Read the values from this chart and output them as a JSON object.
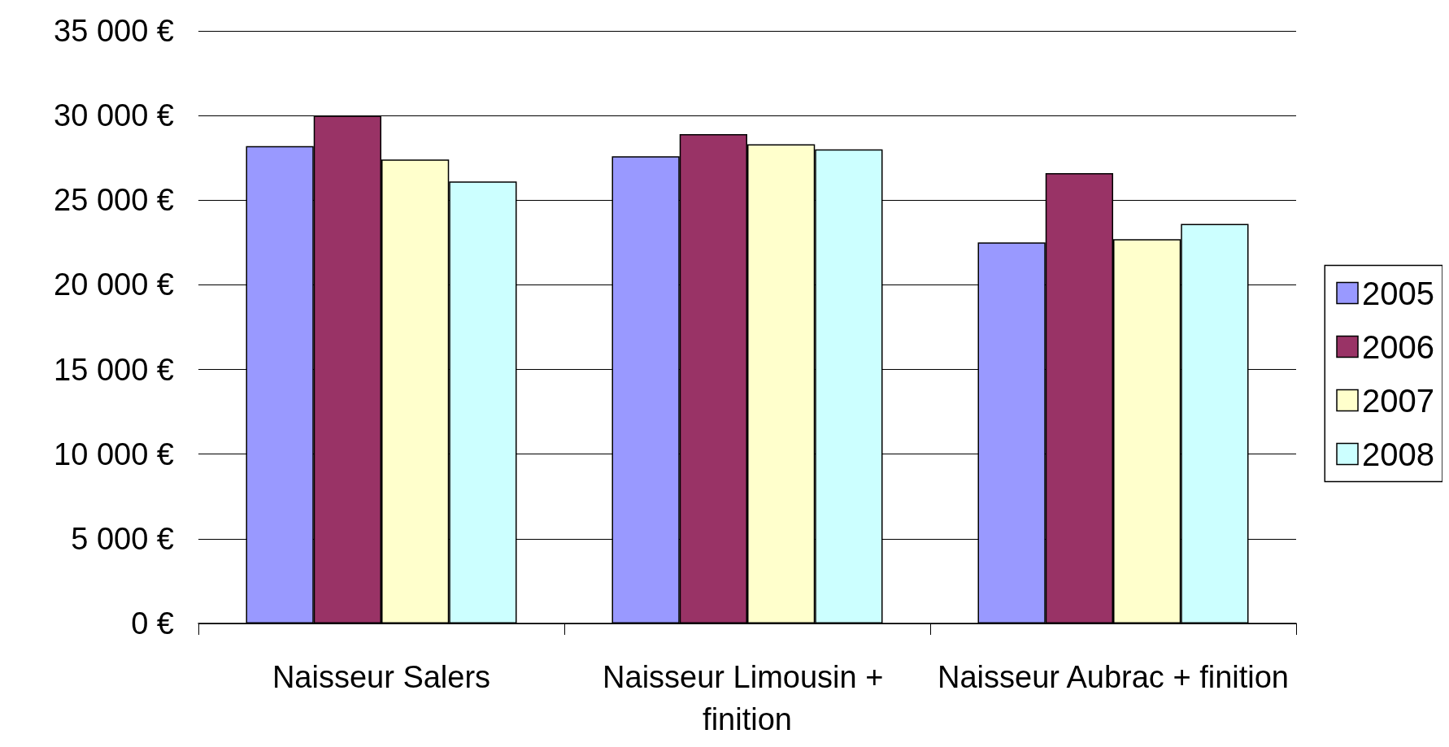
{
  "chart_data": {
    "type": "bar",
    "categories": [
      "Naisseur Salers",
      "Naisseur Limousin + finition",
      "Naisseur Aubrac + finition"
    ],
    "series": [
      {
        "name": "2005",
        "color": "#9999ff",
        "values": [
          28200,
          27600,
          22500
        ]
      },
      {
        "name": "2006",
        "color": "#993366",
        "values": [
          30000,
          28900,
          26600
        ]
      },
      {
        "name": "2007",
        "color": "#ffffcc",
        "values": [
          27400,
          28300,
          22700
        ]
      },
      {
        "name": "2008",
        "color": "#ccffff",
        "values": [
          26100,
          28000,
          23600
        ]
      }
    ],
    "ylim": [
      0,
      35000
    ],
    "yticks": [
      {
        "value": 0,
        "label": "0 €"
      },
      {
        "value": 5000,
        "label": "5 000 €"
      },
      {
        "value": 10000,
        "label": "10 000 €"
      },
      {
        "value": 15000,
        "label": "15 000 €"
      },
      {
        "value": 20000,
        "label": "20 000 €"
      },
      {
        "value": 25000,
        "label": "25 000 €"
      },
      {
        "value": 30000,
        "label": "30 000 €"
      },
      {
        "value": 35000,
        "label": "35 000 €"
      }
    ],
    "grid": "y",
    "legend": "right"
  }
}
